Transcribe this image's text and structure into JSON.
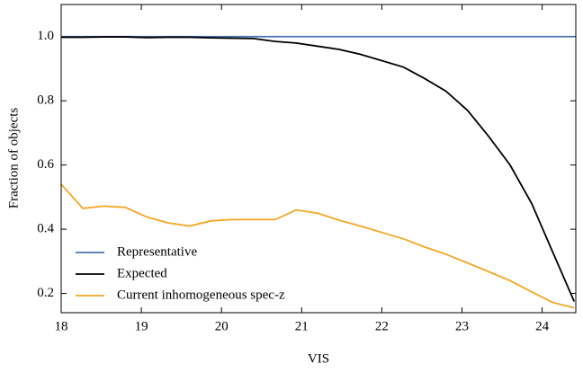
{
  "chart_data": {
    "type": "line",
    "x_label": "VIS",
    "y_label": "Fraction of objects",
    "x": [
      18,
      18.27,
      18.53,
      18.8,
      19.07,
      19.33,
      19.6,
      19.87,
      20.13,
      20.4,
      20.67,
      20.93,
      21.2,
      21.47,
      21.73,
      22.0,
      22.27,
      22.53,
      22.8,
      23.07,
      23.33,
      23.6,
      23.87,
      24.13,
      24.4
    ],
    "series": [
      {
        "name": "Representative",
        "color": "#4c72b0",
        "values": [
          1,
          1,
          1,
          1,
          1,
          1,
          1,
          1,
          1,
          1,
          1,
          1,
          1,
          1,
          1,
          1,
          1,
          1,
          1,
          1,
          1,
          1,
          1,
          1,
          1
        ]
      },
      {
        "name": "Expected",
        "color": "#000000",
        "values": [
          0.998,
          0.998,
          0.999,
          0.999,
          0.997,
          0.998,
          0.998,
          0.996,
          0.995,
          0.994,
          0.985,
          0.98,
          0.97,
          0.96,
          0.945,
          0.925,
          0.905,
          0.87,
          0.83,
          0.77,
          0.69,
          0.6,
          0.48,
          0.33,
          0.175
        ]
      },
      {
        "name": "Current inhomogeneous spec-z",
        "color": "#f5a623",
        "values": [
          0.54,
          0.465,
          0.472,
          0.468,
          0.438,
          0.42,
          0.41,
          0.426,
          0.43,
          0.43,
          0.43,
          0.46,
          0.45,
          0.428,
          0.41,
          0.39,
          0.37,
          0.345,
          0.322,
          0.295,
          0.268,
          0.24,
          0.205,
          0.172,
          0.155
        ]
      }
    ],
    "xlim": [
      18,
      24.42
    ],
    "ylim": [
      0.14,
      1.1
    ],
    "xticks": [
      18,
      19,
      20,
      21,
      22,
      23,
      24
    ],
    "yticks": [
      0.2,
      0.4,
      0.6,
      0.8,
      {
        "value": 1,
        "label": "1.0"
      }
    ],
    "legend": "lower left"
  }
}
